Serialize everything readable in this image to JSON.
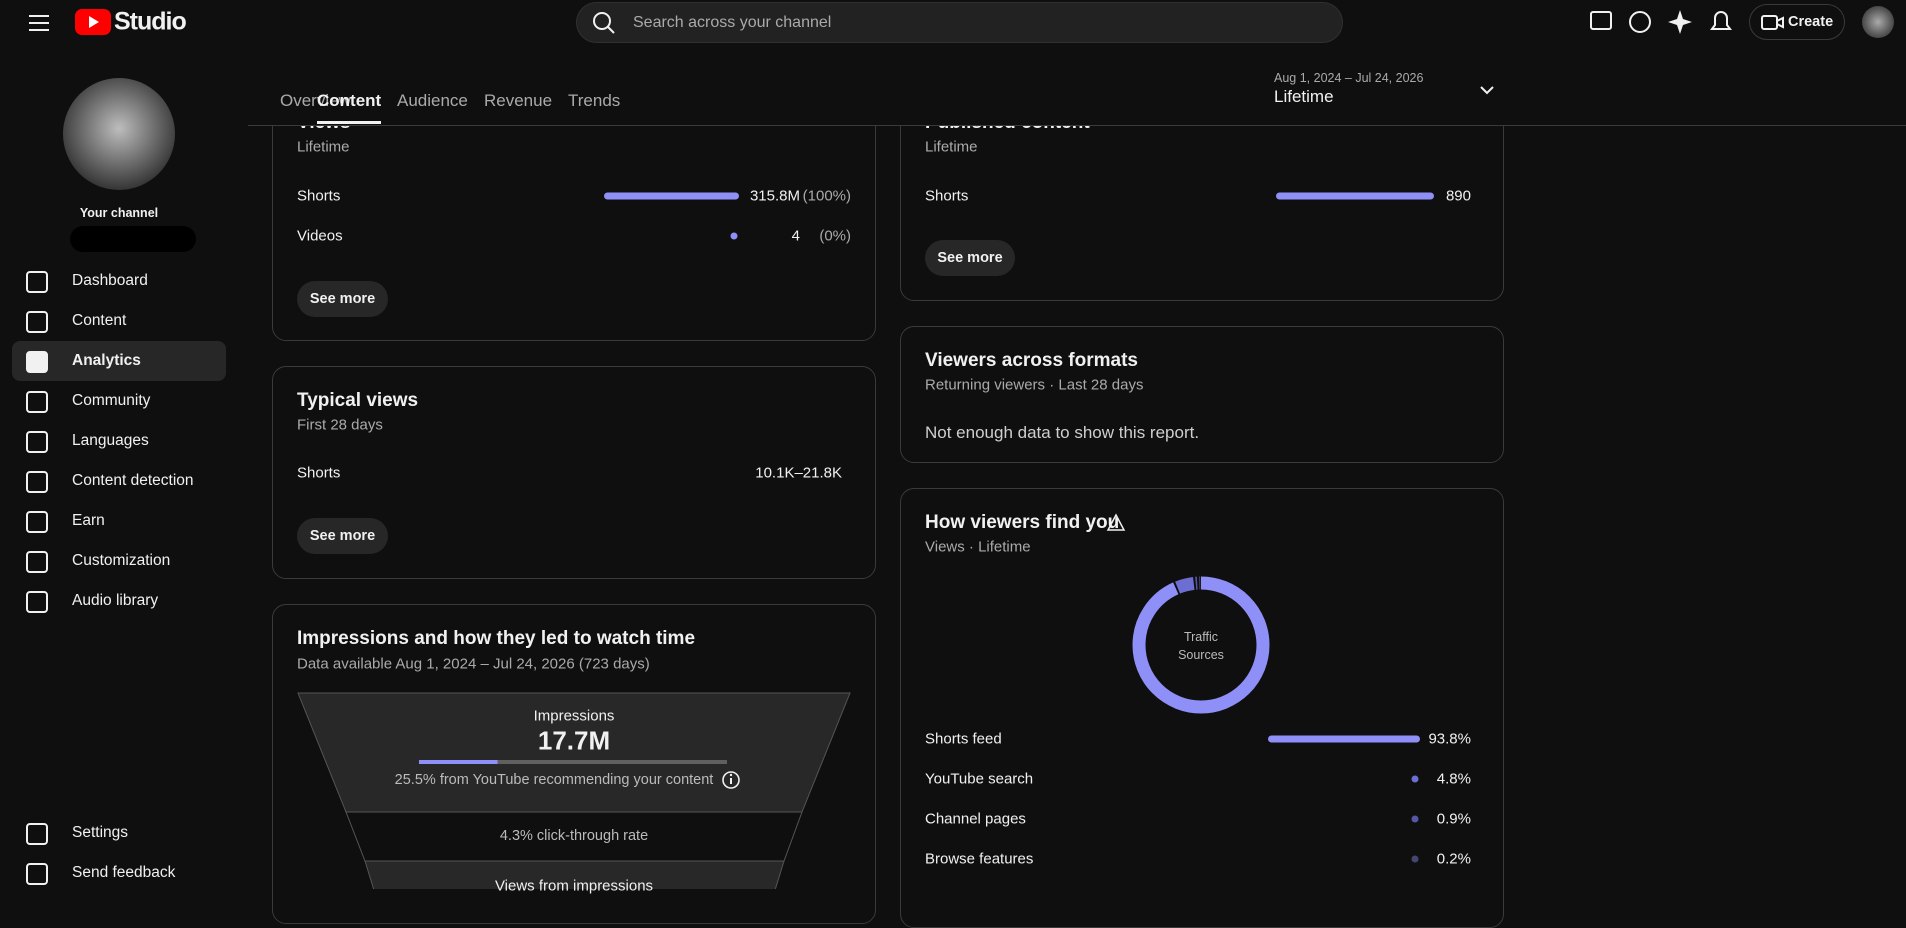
{
  "topbar": {
    "logo": "Studio",
    "search_placeholder": "Search across your channel",
    "create": "Create"
  },
  "sidebar": {
    "channel_label": "Your channel",
    "active": 2,
    "nav": [
      "Dashboard",
      "Content",
      "Analytics",
      "Community",
      "Languages",
      "Content detection",
      "Earn",
      "Customization",
      "Audio library"
    ],
    "footer": [
      "Settings",
      "Send feedback"
    ]
  },
  "tabs": {
    "active": 1,
    "items": [
      "Overview",
      "Content",
      "Audience",
      "Revenue",
      "Trends"
    ]
  },
  "date_range": {
    "range": "Aug 1, 2024 – Jul 24, 2026",
    "label": "Lifetime"
  },
  "views_card": {
    "title": "Views",
    "subtitle": "Lifetime",
    "rows": [
      {
        "label": "Shorts",
        "value": "315.8M",
        "share": "(100%)"
      },
      {
        "label": "Videos",
        "value": "4",
        "share": "(0%)"
      }
    ],
    "button": "See more"
  },
  "published_card": {
    "title": "Published content",
    "subtitle": "Lifetime",
    "rows": [
      {
        "label": "Shorts",
        "value": "890"
      }
    ],
    "button": "See more"
  },
  "typical_card": {
    "title": "Typical views",
    "subtitle": "First 28 days",
    "rows": [
      {
        "label": "Shorts",
        "value": "10.1K–21.8K"
      }
    ],
    "button": "See more"
  },
  "formats_card": {
    "title": "Viewers across formats",
    "subtitle": "Returning viewers · Last 28 days",
    "message": "Not enough data to show this report."
  },
  "impressions_card": {
    "title": "Impressions and how they led to watch time",
    "subtitle": "Data available Aug 1, 2024 – Jul 24, 2026 (723 days)",
    "funnel": {
      "label": "Impressions",
      "value": "17.7M",
      "note": "25.5% from YouTube recommending your content",
      "ctr": "4.3% click-through rate",
      "next": "Views from impressions"
    }
  },
  "traffic_card": {
    "title": "How viewers find you",
    "subtitle": "Views · Lifetime",
    "donut_label": [
      "Traffic",
      "Sources"
    ],
    "rows": [
      {
        "label": "Shorts feed",
        "value": "93.8%",
        "color": "#8f90f7"
      },
      {
        "label": "YouTube search",
        "value": "4.8%",
        "color": "#6d6ed2"
      },
      {
        "label": "Channel pages",
        "value": "0.9%",
        "color": "#5556a6"
      },
      {
        "label": "Browse features",
        "value": "0.2%",
        "color": "#45466f"
      }
    ]
  }
}
